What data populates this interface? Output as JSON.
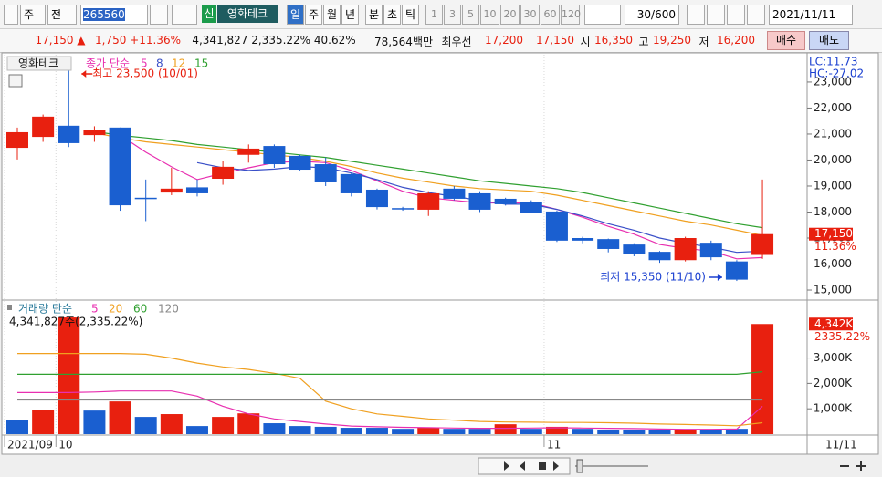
{
  "toolbar": {
    "market": "주",
    "prev": "전",
    "code": "265560",
    "badge": "신",
    "name": "영화테크",
    "periods": [
      "일",
      "주",
      "월",
      "년",
      "분",
      "초",
      "틱"
    ],
    "intervals": [
      "1",
      "3",
      "5",
      "10",
      "20",
      "30",
      "60",
      "120"
    ],
    "count": "30/600",
    "date": "2021/11/11"
  },
  "quote": {
    "price": "17,150 ▲",
    "change": "1,750 +11.36%",
    "volume": "4,341,827 2,335.22% 40.62%",
    "amount": "78,564백만",
    "best_label": "최우선",
    "ask": "17,200",
    "bid": "17,150",
    "open_label": "시",
    "open": "16,350",
    "high_label": "고",
    "high": "19,250",
    "low_label": "저",
    "low": "16,200",
    "buy": "매수",
    "sell": "매도"
  },
  "chart_data": [
    {
      "type": "candlestick",
      "title": "영화테크",
      "ma_label": "종가 단순",
      "up_color": "#e8200f",
      "down_color": "#1a5fd0",
      "ohlc": {
        "open": [
          20470,
          20890,
          21320,
          20960,
          21250,
          18550,
          18750,
          18950,
          19280,
          20200,
          20540,
          20160,
          19840,
          19460,
          18860,
          18150,
          18090,
          18900,
          18720,
          18510,
          18400,
          18020,
          17000,
          16960,
          16750,
          16470,
          16150,
          16820,
          16100,
          16350
        ],
        "high": [
          21250,
          21750,
          23500,
          21300,
          21250,
          19250,
          19700,
          19250,
          19950,
          20600,
          20600,
          20200,
          20100,
          19500,
          18900,
          18200,
          18800,
          19000,
          18800,
          18550,
          18450,
          18050,
          17050,
          16980,
          16800,
          16500,
          17050,
          16900,
          16150,
          19250
        ],
        "low": [
          20020,
          20700,
          20500,
          20700,
          18050,
          17650,
          18650,
          18600,
          19050,
          19900,
          19700,
          19600,
          19000,
          18600,
          18100,
          18050,
          17850,
          18450,
          18000,
          18250,
          17950,
          16850,
          16800,
          16450,
          16300,
          16050,
          16100,
          16150,
          15350,
          16200
        ],
        "close": [
          21070,
          21670,
          20650,
          21140,
          18260,
          18500,
          18900,
          18720,
          19740,
          20440,
          19840,
          19630,
          19140,
          18720,
          18190,
          18100,
          18720,
          18510,
          18090,
          18300,
          17980,
          16900,
          16900,
          16580,
          16400,
          16150,
          17000,
          16260,
          15400,
          17150
        ]
      },
      "series": [
        {
          "name": "5",
          "color": "#e82fb0",
          "values": [
            null,
            null,
            null,
            null,
            20960,
            20300,
            19740,
            19250,
            19490,
            19700,
            19900,
            19950,
            19900,
            19600,
            19200,
            18800,
            18550,
            18450,
            18350,
            18350,
            18350,
            18100,
            17800,
            17450,
            17150,
            16750,
            16600,
            16500,
            16200,
            16250
          ]
        },
        {
          "name": "8",
          "color": "#3a50c8",
          "values": [
            null,
            null,
            null,
            null,
            null,
            null,
            null,
            19900,
            19700,
            19600,
            19650,
            19750,
            19700,
            19500,
            19250,
            18950,
            18750,
            18600,
            18450,
            18300,
            18300,
            18100,
            17850,
            17550,
            17300,
            17000,
            16800,
            16650,
            16450,
            16500
          ]
        },
        {
          "name": "12",
          "color": "#f0a020",
          "values": [
            null,
            null,
            null,
            21050,
            20850,
            20700,
            20600,
            20500,
            20400,
            20300,
            20200,
            20100,
            19950,
            19750,
            19500,
            19300,
            19150,
            19000,
            18900,
            18850,
            18800,
            18650,
            18450,
            18250,
            18050,
            17850,
            17650,
            17500,
            17300,
            17100
          ]
        },
        {
          "name": "15",
          "color": "#30a030",
          "values": [
            null,
            null,
            null,
            21100,
            20950,
            20850,
            20750,
            20600,
            20500,
            20400,
            20300,
            20200,
            20100,
            19950,
            19800,
            19650,
            19500,
            19350,
            19200,
            19100,
            19000,
            18900,
            18750,
            18550,
            18350,
            18150,
            17950,
            17750,
            17550,
            17400
          ]
        }
      ],
      "annotations": [
        "최고 23,500 (10/01)",
        "최저 15,350 (11/10)"
      ],
      "indicators": [
        "LC:11.73",
        "HC:-27.02"
      ],
      "last_label": "17,150",
      "last_change": "11.36%",
      "ylim": [
        14650,
        24050
      ],
      "yticks": [
        {
          "value": 15000,
          "label": "15,000"
        },
        {
          "value": 16000,
          "label": "16,000"
        },
        {
          "value": 17000,
          "label": "17,000"
        },
        {
          "value": 18000,
          "label": "18,000"
        },
        {
          "value": 19000,
          "label": "19,000"
        },
        {
          "value": 20000,
          "label": "20,000"
        },
        {
          "value": 21000,
          "label": "21,000"
        },
        {
          "value": 22000,
          "label": "22,000"
        },
        {
          "value": 23000,
          "label": "23,000"
        }
      ]
    },
    {
      "type": "bar",
      "title": "거래량 단순",
      "info": "4,341,827주(2,335.22%)",
      "categories": [
        "2021/09",
        null,
        "10",
        null,
        null,
        null,
        null,
        null,
        null,
        null,
        null,
        null,
        null,
        null,
        null,
        null,
        null,
        null,
        null,
        null,
        null,
        "11",
        null,
        null,
        null,
        null,
        null,
        null,
        null,
        null
      ],
      "x_end_label": "11/11",
      "values": [
        570,
        960,
        4600,
        930,
        1290,
        680,
        790,
        320,
        680,
        820,
        430,
        320,
        290,
        250,
        250,
        210,
        250,
        210,
        210,
        390,
        210,
        290,
        210,
        180,
        180,
        180,
        180,
        180,
        210,
        4342
      ],
      "colors": [
        "#1a5fd0",
        "#e8200f",
        "#e8200f",
        "#1a5fd0",
        "#e8200f",
        "#1a5fd0",
        "#e8200f",
        "#1a5fd0",
        "#e8200f",
        "#e8200f",
        "#1a5fd0",
        "#1a5fd0",
        "#1a5fd0",
        "#1a5fd0",
        "#1a5fd0",
        "#1a5fd0",
        "#e8200f",
        "#1a5fd0",
        "#1a5fd0",
        "#e8200f",
        "#1a5fd0",
        "#e8200f",
        "#1a5fd0",
        "#1a5fd0",
        "#1a5fd0",
        "#1a5fd0",
        "#e8200f",
        "#1a5fd0",
        "#1a5fd0",
        "#e8200f"
      ],
      "series": [
        {
          "name": "5",
          "color": "#e82fb0",
          "values": [
            1640,
            1640,
            1640,
            1660,
            1700,
            1700,
            1700,
            1500,
            1100,
            800,
            600,
            500,
            400,
            320,
            290,
            270,
            260,
            240,
            230,
            230,
            240,
            250,
            240,
            230,
            220,
            200,
            190,
            190,
            200,
            1100
          ]
        },
        {
          "name": "20",
          "color": "#f0a020",
          "values": [
            3180,
            3180,
            3180,
            3180,
            3180,
            3150,
            3000,
            2800,
            2650,
            2550,
            2400,
            2200,
            1300,
            1000,
            800,
            700,
            600,
            550,
            500,
            480,
            470,
            460,
            460,
            450,
            430,
            400,
            380,
            360,
            330,
            450
          ]
        },
        {
          "name": "60",
          "color": "#30a030",
          "values": [
            2360,
            2360,
            2360,
            2360,
            2360,
            2360,
            2360,
            2360,
            2360,
            2360,
            2360,
            2360,
            2360,
            2360,
            2360,
            2360,
            2360,
            2360,
            2360,
            2360,
            2360,
            2360,
            2360,
            2360,
            2360,
            2360,
            2360,
            2360,
            2360,
            2460
          ]
        },
        {
          "name": "120",
          "color": "#888888",
          "values": [
            1350,
            1350,
            1350,
            1350,
            1350,
            1350,
            1350,
            1350,
            1350,
            1350,
            1350,
            1350,
            1350,
            1350,
            1350,
            1350,
            1350,
            1350,
            1350,
            1350,
            1350,
            1350,
            1350,
            1350,
            1350,
            1350,
            1350,
            1350,
            1350,
            1350
          ]
        }
      ],
      "last_label": "4,342K",
      "last_ratio": "2335.22%",
      "ylim": [
        0,
        5250
      ],
      "yticks": [
        {
          "value": 1000,
          "label": "1,000K"
        },
        {
          "value": 2000,
          "label": "2,000K"
        },
        {
          "value": 3000,
          "label": "3,000K"
        }
      ]
    }
  ]
}
